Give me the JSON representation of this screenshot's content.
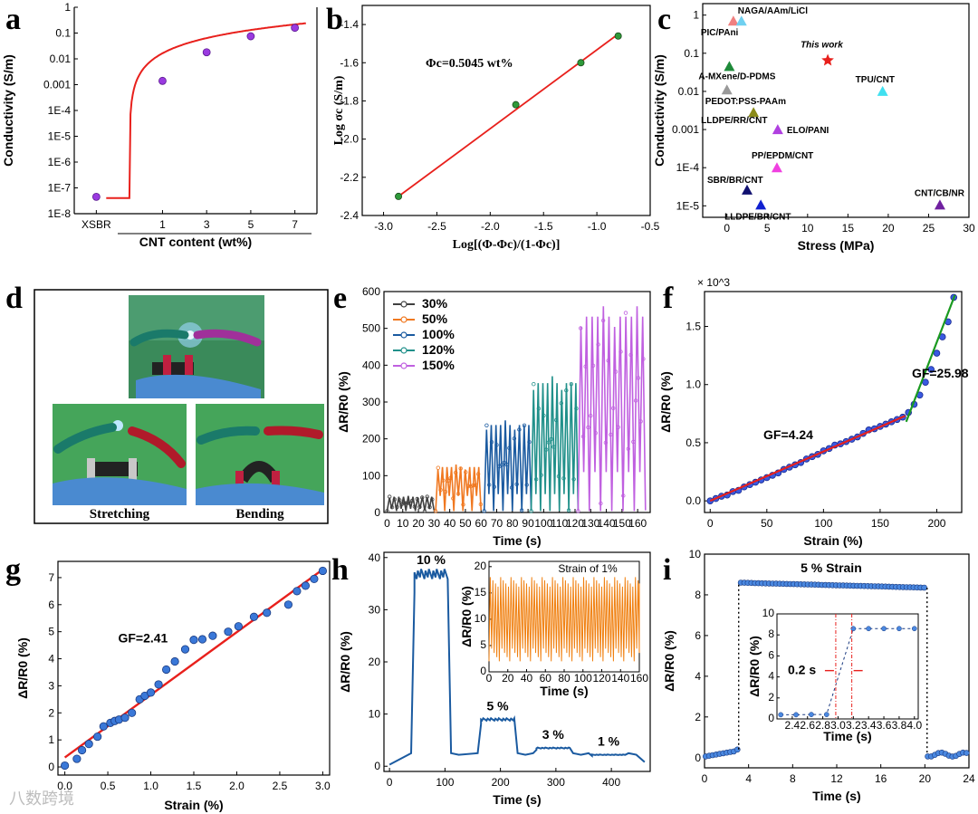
{
  "watermark": "八数跨境",
  "chart_data": [
    {
      "panel": "a",
      "type": "scatter",
      "xlabel": "CNT content (wt%)",
      "ylabel": "Conductivity (S/m)",
      "x": [
        "XSBR",
        "1",
        "3",
        "5",
        "7"
      ],
      "xticks": [
        {
          "label": "XSBR",
          "x": -2
        },
        {
          "label": "1",
          "x": 1
        },
        {
          "label": "3",
          "x": 3
        },
        {
          "label": "5",
          "x": 5
        },
        {
          "label": "7",
          "x": 7
        }
      ],
      "yscale": "log",
      "ylim": [
        1e-08,
        1
      ],
      "yticks": [
        "1E-8",
        "1E-7",
        "1E-6",
        "1E-5",
        "1E-4",
        "0.001",
        "0.01",
        "0.1",
        "1"
      ],
      "points": [
        {
          "x": -2,
          "y": 4.5e-08
        },
        {
          "x": 1,
          "y": 0.0014
        },
        {
          "x": 3,
          "y": 0.018
        },
        {
          "x": 5,
          "y": 0.075
        },
        {
          "x": 7,
          "y": 0.16
        }
      ],
      "fit": {
        "color": "#e8201c",
        "phi_c": 0.5045,
        "A": 0.16,
        "t": 1.6
      }
    },
    {
      "panel": "b",
      "type": "scatter",
      "xlabel": "Log[(Φ-Φc)/(1-Φc)]",
      "ylabel": "Log σc (S/m)",
      "xlim": [
        -3.2,
        -0.5
      ],
      "ylim": [
        -2.4,
        -1.3
      ],
      "xticks": [
        "-3.0",
        "-2.5",
        "-2.0",
        "-1.5",
        "-1.0",
        "-0.5"
      ],
      "yticks": [
        "-2.4",
        "-2.2",
        "-2.0",
        "-1.8",
        "-1.6",
        "-1.4"
      ],
      "points": [
        {
          "x": -2.86,
          "y": -2.3
        },
        {
          "x": -1.76,
          "y": -1.82
        },
        {
          "x": -1.15,
          "y": -1.6
        },
        {
          "x": -0.8,
          "y": -1.46
        }
      ],
      "fit": [
        {
          "x": -2.86,
          "y": -2.3
        },
        {
          "x": -0.8,
          "y": -1.45
        }
      ],
      "annotation": "Φc=0.5045 wt%"
    },
    {
      "panel": "c",
      "type": "scatter",
      "xlabel": "Stress (MPa)",
      "ylabel": "Conductivity (S/m)",
      "xlim": [
        -3,
        30
      ],
      "ylim": [
        5e-06,
        2
      ],
      "yscale": "log",
      "xticks": [
        "0",
        "5",
        "10",
        "15",
        "20",
        "25",
        "30"
      ],
      "yticks": [
        "1E-5",
        "1E-4",
        "0.001",
        "0.01",
        "0.1",
        "1"
      ],
      "points": [
        {
          "label": "PIC/PAni",
          "x": 0.8,
          "y": 0.7,
          "color": "#f08080",
          "marker": "triangle"
        },
        {
          "label": "NAGA/AAm/LiCl",
          "x": 1.8,
          "y": 0.7,
          "color": "#6fd0f0",
          "marker": "triangle"
        },
        {
          "label": "This work",
          "x": 12.5,
          "y": 0.065,
          "color": "#e8201c",
          "marker": "star"
        },
        {
          "label": "A-MXene/D-PDMS",
          "x": 0.3,
          "y": 0.045,
          "color": "#1f8a3a",
          "marker": "triangle"
        },
        {
          "label": "TPU/CNT",
          "x": 19.3,
          "y": 0.01,
          "color": "#40e0f0",
          "marker": "triangle"
        },
        {
          "label": "PEDOT:PSS-PAAm",
          "x": 0.0,
          "y": 0.011,
          "color": "#999999",
          "marker": "triangle"
        },
        {
          "label": "LLDPE/RR/CNT",
          "x": 3.3,
          "y": 0.0028,
          "color": "#8b8b1a",
          "marker": "triangle"
        },
        {
          "label": "ELO/PANI",
          "x": 6.3,
          "y": 0.001,
          "color": "#b040e0",
          "marker": "triangle"
        },
        {
          "label": "PP/EPDM/CNT",
          "x": 6.2,
          "y": 0.0001,
          "color": "#f040e0",
          "marker": "triangle"
        },
        {
          "label": "SBR/BR/CNT",
          "x": 2.5,
          "y": 2.6e-05,
          "color": "#101070",
          "marker": "triangle"
        },
        {
          "label": "LLDPE/BR/CNT",
          "x": 4.2,
          "y": 1.05e-05,
          "color": "#1020d0",
          "marker": "triangle"
        },
        {
          "label": "CNT/CB/NR",
          "x": 26.4,
          "y": 1.05e-05,
          "color": "#7020a0",
          "marker": "triangle"
        }
      ]
    },
    {
      "panel": "e",
      "type": "line",
      "xlabel": "Time (s)",
      "ylabel": "ΔR/R0 (%)",
      "xlim": [
        -2,
        168
      ],
      "ylim": [
        0,
        600
      ],
      "xticks": [
        "0",
        "10",
        "20",
        "30",
        "40",
        "50",
        "60",
        "70",
        "80",
        "90",
        "100",
        "110",
        "120",
        "130",
        "140",
        "150",
        "160"
      ],
      "yticks": [
        "0",
        "100",
        "200",
        "300",
        "400",
        "500",
        "600"
      ],
      "series": [
        {
          "name": "30%",
          "color": "#404040",
          "t_start": 0,
          "t_end": 30,
          "peak": 45,
          "base": 10,
          "cycles": 5
        },
        {
          "name": "50%",
          "color": "#f07820",
          "t_start": 31,
          "t_end": 60,
          "peak": 130,
          "base": 45,
          "cycles": 5
        },
        {
          "name": "100%",
          "color": "#1a5aa0",
          "t_start": 62,
          "t_end": 92,
          "peak": 250,
          "base": 50,
          "cycles": 5
        },
        {
          "name": "120%",
          "color": "#20908a",
          "t_start": 92,
          "t_end": 122,
          "peak": 370,
          "base": 50,
          "cycles": 5
        },
        {
          "name": "150%",
          "color": "#c060e0",
          "t_start": 122,
          "t_end": 165,
          "peak": 560,
          "base": 110,
          "cycles": 6
        }
      ]
    },
    {
      "panel": "f",
      "type": "scatter",
      "xlabel": "Strain (%)",
      "ylabel": "ΔR/R0 (%)",
      "multiplier": "× 10^3",
      "xlim": [
        -5,
        222
      ],
      "ylim": [
        -0.1,
        1.8
      ],
      "xticks": [
        "0",
        "50",
        "100",
        "150",
        "200"
      ],
      "yticks": [
        "0.0",
        "0.5",
        "1.0",
        "1.5"
      ],
      "points": [
        {
          "x": 0,
          "y": 0.0
        },
        {
          "x": 5,
          "y": 0.02
        },
        {
          "x": 10,
          "y": 0.04
        },
        {
          "x": 15,
          "y": 0.05
        },
        {
          "x": 20,
          "y": 0.08
        },
        {
          "x": 25,
          "y": 0.09
        },
        {
          "x": 30,
          "y": 0.12
        },
        {
          "x": 35,
          "y": 0.14
        },
        {
          "x": 40,
          "y": 0.16
        },
        {
          "x": 45,
          "y": 0.18
        },
        {
          "x": 50,
          "y": 0.2
        },
        {
          "x": 55,
          "y": 0.22
        },
        {
          "x": 60,
          "y": 0.24
        },
        {
          "x": 65,
          "y": 0.27
        },
        {
          "x": 70,
          "y": 0.29
        },
        {
          "x": 75,
          "y": 0.31
        },
        {
          "x": 80,
          "y": 0.33
        },
        {
          "x": 85,
          "y": 0.36
        },
        {
          "x": 90,
          "y": 0.38
        },
        {
          "x": 95,
          "y": 0.4
        },
        {
          "x": 100,
          "y": 0.43
        },
        {
          "x": 105,
          "y": 0.45
        },
        {
          "x": 110,
          "y": 0.48
        },
        {
          "x": 115,
          "y": 0.49
        },
        {
          "x": 120,
          "y": 0.51
        },
        {
          "x": 125,
          "y": 0.53
        },
        {
          "x": 130,
          "y": 0.55
        },
        {
          "x": 135,
          "y": 0.58
        },
        {
          "x": 140,
          "y": 0.61
        },
        {
          "x": 145,
          "y": 0.62
        },
        {
          "x": 150,
          "y": 0.64
        },
        {
          "x": 155,
          "y": 0.66
        },
        {
          "x": 160,
          "y": 0.68
        },
        {
          "x": 165,
          "y": 0.7
        },
        {
          "x": 170,
          "y": 0.72
        },
        {
          "x": 175,
          "y": 0.76
        },
        {
          "x": 180,
          "y": 0.83
        },
        {
          "x": 185,
          "y": 0.91
        },
        {
          "x": 190,
          "y": 1.02
        },
        {
          "x": 195,
          "y": 1.13
        },
        {
          "x": 200,
          "y": 1.27
        },
        {
          "x": 205,
          "y": 1.41
        },
        {
          "x": 210,
          "y": 1.54
        },
        {
          "x": 215,
          "y": 1.75
        }
      ],
      "fits": [
        {
          "label": "GF=4.24",
          "color": "#e8201c",
          "from": {
            "x": 0,
            "y": 0.0
          },
          "to": {
            "x": 172,
            "y": 0.73
          }
        },
        {
          "label": "GF=25.98",
          "color": "#1a9a20",
          "from": {
            "x": 173,
            "y": 0.68
          },
          "to": {
            "x": 216,
            "y": 1.77
          }
        }
      ]
    },
    {
      "panel": "g",
      "type": "scatter",
      "xlabel": "Strain (%)",
      "ylabel": "ΔR/R0 (%)",
      "xlim": [
        -0.08,
        3.08
      ],
      "ylim": [
        -0.3,
        7.6
      ],
      "xticks": [
        "0.0",
        "0.5",
        "1.0",
        "1.5",
        "2.0",
        "2.5",
        "3.0"
      ],
      "yticks": [
        "0",
        "1",
        "2",
        "3",
        "4",
        "5",
        "6",
        "7"
      ],
      "points": [
        {
          "x": 0,
          "y": 0.05
        },
        {
          "x": 0.14,
          "y": 0.3
        },
        {
          "x": 0.2,
          "y": 0.62
        },
        {
          "x": 0.28,
          "y": 0.85
        },
        {
          "x": 0.38,
          "y": 1.12
        },
        {
          "x": 0.45,
          "y": 1.5
        },
        {
          "x": 0.53,
          "y": 1.63
        },
        {
          "x": 0.58,
          "y": 1.7
        },
        {
          "x": 0.63,
          "y": 1.75
        },
        {
          "x": 0.7,
          "y": 1.82
        },
        {
          "x": 0.78,
          "y": 2.0
        },
        {
          "x": 0.87,
          "y": 2.5
        },
        {
          "x": 0.93,
          "y": 2.63
        },
        {
          "x": 1.0,
          "y": 2.75
        },
        {
          "x": 1.09,
          "y": 3.05
        },
        {
          "x": 1.18,
          "y": 3.6
        },
        {
          "x": 1.28,
          "y": 3.9
        },
        {
          "x": 1.4,
          "y": 4.35
        },
        {
          "x": 1.5,
          "y": 4.7
        },
        {
          "x": 1.6,
          "y": 4.72
        },
        {
          "x": 1.72,
          "y": 4.85
        },
        {
          "x": 1.9,
          "y": 5.0
        },
        {
          "x": 2.02,
          "y": 5.2
        },
        {
          "x": 2.2,
          "y": 5.55
        },
        {
          "x": 2.35,
          "y": 5.7
        },
        {
          "x": 2.6,
          "y": 6.0
        },
        {
          "x": 2.7,
          "y": 6.5
        },
        {
          "x": 2.8,
          "y": 6.7
        },
        {
          "x": 2.9,
          "y": 6.95
        },
        {
          "x": 3.0,
          "y": 7.25
        }
      ],
      "fit": {
        "label": "GF=2.41",
        "color": "#e8201c",
        "from": {
          "x": 0,
          "y": 0.35
        },
        "to": {
          "x": 3.0,
          "y": 7.3
        }
      }
    },
    {
      "panel": "h",
      "type": "line",
      "xlabel": "Time (s)",
      "ylabel": "ΔR/R0 (%)",
      "xlim": [
        -10,
        470
      ],
      "ylim": [
        -1,
        41
      ],
      "xticks": [
        "0",
        "100",
        "200",
        "300",
        "400"
      ],
      "yticks": [
        "0",
        "10",
        "20",
        "30",
        "40"
      ],
      "color": "#1a5aa0",
      "steps": [
        {
          "label": "10 %",
          "t0": 45,
          "t1": 105,
          "level": 37
        },
        {
          "label": "5 %",
          "t0": 165,
          "t1": 225,
          "level": 9
        },
        {
          "label": "3 %",
          "t0": 265,
          "t1": 325,
          "level": 3.5
        },
        {
          "label": "1 %",
          "t0": 365,
          "t1": 425,
          "level": 2.2
        }
      ],
      "inset": {
        "title": "Strain of 1%",
        "color": "#f08010",
        "xlabel": "Time (s)",
        "ylabel": "ΔR/R0 (%)",
        "xlim": [
          0,
          160
        ],
        "ylim": [
          0,
          21
        ],
        "xticks": [
          "0",
          "20",
          "40",
          "60",
          "80",
          "100",
          "120",
          "140",
          "160"
        ],
        "yticks": [
          "0",
          "5",
          "10",
          "15",
          "20"
        ],
        "cycles": 58,
        "low": 2,
        "high": 18
      }
    },
    {
      "panel": "i",
      "type": "line",
      "xlabel": "Time (s)",
      "ylabel": "ΔR/R0 (%)",
      "xlim": [
        0,
        24
      ],
      "ylim": [
        -0.5,
        10
      ],
      "xticks": [
        "0",
        "4",
        "8",
        "12",
        "16",
        "20",
        "24"
      ],
      "yticks": [
        "0",
        "2",
        "4",
        "6",
        "8",
        "10"
      ],
      "annotation": "5 % Strain",
      "color": "#1a5aa0",
      "on_time": 3.1,
      "off_time": 20.2,
      "level_start": 8.6,
      "level_end": 8.35,
      "inset": {
        "xlabel": "Time (s)",
        "ylabel": "ΔR/R0 (%)",
        "xlim": [
          2.2,
          4.05
        ],
        "ylim": [
          0,
          10
        ],
        "xticks": [
          "2.4",
          "2.6",
          "2.8",
          "3.0",
          "3.2",
          "3.4",
          "3.6",
          "3.8",
          "4.0"
        ],
        "yticks": [
          "0",
          "2",
          "4",
          "6",
          "8",
          "10"
        ],
        "annotation": "0.2 s",
        "points": [
          {
            "x": 2.25,
            "y": 0.4
          },
          {
            "x": 2.45,
            "y": 0.4
          },
          {
            "x": 2.65,
            "y": 0.42
          },
          {
            "x": 2.85,
            "y": 0.42
          },
          {
            "x": 3.2,
            "y": 8.6
          },
          {
            "x": 3.4,
            "y": 8.6
          },
          {
            "x": 3.6,
            "y": 8.6
          },
          {
            "x": 3.8,
            "y": 8.6
          },
          {
            "x": 4.0,
            "y": 8.6
          }
        ],
        "marks": [
          2.97,
          3.18
        ]
      }
    }
  ],
  "panel_d": {
    "label": "d",
    "caption_left": "Stretching",
    "caption_right": "Bending"
  },
  "labels": {
    "a": "a",
    "b": "b",
    "c": "c",
    "d": "d",
    "e": "e",
    "f": "f",
    "g": "g",
    "h": "h",
    "i": "i"
  }
}
